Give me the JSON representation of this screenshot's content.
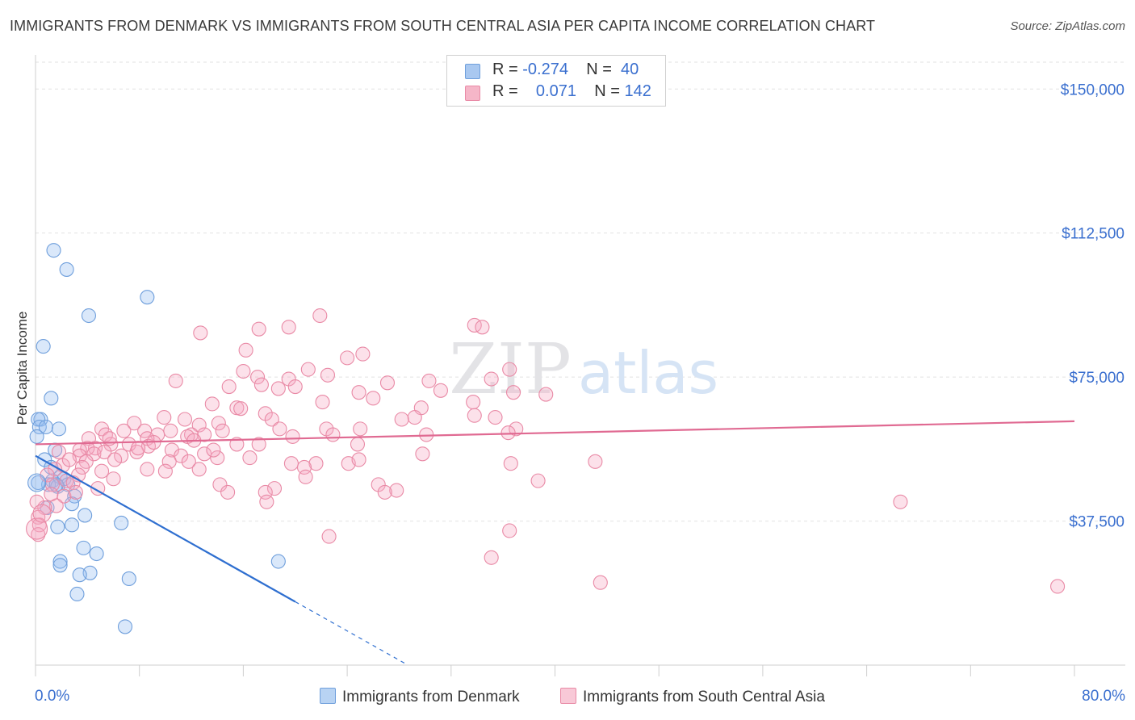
{
  "title": "IMMIGRANTS FROM DENMARK VS IMMIGRANTS FROM SOUTH CENTRAL ASIA PER CAPITA INCOME CORRELATION CHART",
  "source": "Source: ZipAtlas.com",
  "watermark": {
    "zip": "ZIP",
    "atlas": "atlas"
  },
  "legend": {
    "rows": [
      {
        "r_label": "R = ",
        "r_value": "-0.274",
        "n_label": "N = ",
        "n_value": "40",
        "color": "#a9c8f0",
        "border": "#6f9fdc"
      },
      {
        "r_label": "R = ",
        "r_value": "0.071",
        "n_label": "N = ",
        "n_value": "142",
        "color": "#f5b6c8",
        "border": "#e98aa6"
      }
    ]
  },
  "bottom_legend": [
    {
      "label": "Immigrants from Denmark",
      "color": "#b8d3f3",
      "border": "#6f9fdc"
    },
    {
      "label": "Immigrants from South Central Asia",
      "color": "#f8c9d7",
      "border": "#e98aa6"
    }
  ],
  "chart_data": {
    "type": "scatter",
    "title": "IMMIGRANTS FROM DENMARK VS IMMIGRANTS FROM SOUTH CENTRAL ASIA PER CAPITA INCOME CORRELATION CHART",
    "xlabel": "",
    "ylabel": "Per Capita Income",
    "xlim": [
      0,
      80
    ],
    "ylim": [
      0,
      157000
    ],
    "x_tick_labels": {
      "min": "0.0%",
      "max": "80.0%"
    },
    "y_ticks": [
      {
        "value": 37500,
        "label": "$37,500"
      },
      {
        "value": 75000,
        "label": "$75,000"
      },
      {
        "value": 112500,
        "label": "$112,500"
      },
      {
        "value": 150000,
        "label": "$150,000"
      }
    ],
    "grid": true,
    "series": [
      {
        "name": "Immigrants from Denmark",
        "color": "#6f9fdc",
        "fill": "rgba(150,190,240,0.35)",
        "trend": {
          "x0": 0,
          "y0": 54500,
          "x1": 20,
          "y1": 16500,
          "dash_to_x": 28.5,
          "color": "#2f6fd0"
        },
        "points": [
          [
            1.4,
            108000
          ],
          [
            2.4,
            103000
          ],
          [
            8.6,
            95800
          ],
          [
            4.1,
            91000
          ],
          [
            0.6,
            83000
          ],
          [
            1.2,
            69500
          ],
          [
            0.4,
            64000
          ],
          [
            0.2,
            64000
          ],
          [
            0.3,
            62000
          ],
          [
            0.8,
            62000
          ],
          [
            1.8,
            61500
          ],
          [
            1.5,
            56000
          ],
          [
            0.1,
            59500
          ],
          [
            0.7,
            53500
          ],
          [
            1.2,
            51500
          ],
          [
            1.3,
            48000
          ],
          [
            1.9,
            49000
          ],
          [
            2.2,
            48500
          ],
          [
            2.5,
            47000
          ],
          [
            1.0,
            47000
          ],
          [
            1.7,
            46500
          ],
          [
            3.0,
            44000
          ],
          [
            2.8,
            42000
          ],
          [
            0.9,
            41000
          ],
          [
            3.8,
            39000
          ],
          [
            6.6,
            37000
          ],
          [
            2.8,
            36500
          ],
          [
            1.7,
            36000
          ],
          [
            3.7,
            30500
          ],
          [
            4.7,
            29000
          ],
          [
            1.9,
            27000
          ],
          [
            1.9,
            26000
          ],
          [
            4.2,
            24000
          ],
          [
            3.4,
            23500
          ],
          [
            7.2,
            22500
          ],
          [
            3.2,
            18500
          ],
          [
            6.9,
            10000
          ],
          [
            18.7,
            27000
          ],
          [
            0.2,
            47500
          ],
          [
            1.6,
            47000
          ]
        ]
      },
      {
        "name": "Immigrants from South Central Asia",
        "color": "#e98aa6",
        "fill": "rgba(245,170,195,0.35)",
        "trend": {
          "x0": 0,
          "y0": 57500,
          "x1": 80,
          "y1": 63500,
          "color": "#e06a92"
        },
        "points": [
          [
            21.9,
            91000
          ],
          [
            33.8,
            88500
          ],
          [
            34.4,
            88000
          ],
          [
            19.5,
            88000
          ],
          [
            17.2,
            87500
          ],
          [
            12.7,
            86500
          ],
          [
            16.2,
            82000
          ],
          [
            25.2,
            81000
          ],
          [
            24.0,
            80000
          ],
          [
            36.5,
            77000
          ],
          [
            21.0,
            77000
          ],
          [
            16.0,
            76500
          ],
          [
            22.5,
            75500
          ],
          [
            17.1,
            75000
          ],
          [
            35.1,
            74500
          ],
          [
            30.3,
            74000
          ],
          [
            19.5,
            74500
          ],
          [
            10.8,
            74000
          ],
          [
            27.1,
            73500
          ],
          [
            17.4,
            73000
          ],
          [
            14.9,
            72500
          ],
          [
            20.0,
            72500
          ],
          [
            18.7,
            72000
          ],
          [
            31.2,
            71500
          ],
          [
            36.8,
            71000
          ],
          [
            24.9,
            71000
          ],
          [
            39.3,
            70500
          ],
          [
            26.0,
            69500
          ],
          [
            13.6,
            68000
          ],
          [
            22.1,
            68500
          ],
          [
            33.7,
            68500
          ],
          [
            15.5,
            67000
          ],
          [
            29.7,
            67000
          ],
          [
            15.8,
            66800
          ],
          [
            17.7,
            65500
          ],
          [
            18.2,
            64000
          ],
          [
            33.8,
            65000
          ],
          [
            29.2,
            64500
          ],
          [
            35.4,
            64500
          ],
          [
            28.2,
            64000
          ],
          [
            9.9,
            64500
          ],
          [
            11.5,
            64000
          ],
          [
            12.6,
            62500
          ],
          [
            14.1,
            63000
          ],
          [
            7.6,
            63000
          ],
          [
            5.1,
            61500
          ],
          [
            22.4,
            61500
          ],
          [
            8.4,
            61000
          ],
          [
            10.4,
            61000
          ],
          [
            18.8,
            61500
          ],
          [
            37.0,
            61500
          ],
          [
            14.4,
            61000
          ],
          [
            25.0,
            61500
          ],
          [
            6.8,
            61000
          ],
          [
            5.4,
            60000
          ],
          [
            9.4,
            60000
          ],
          [
            12.0,
            60000
          ],
          [
            13.0,
            60000
          ],
          [
            19.8,
            59500
          ],
          [
            22.9,
            60000
          ],
          [
            30.1,
            60000
          ],
          [
            36.4,
            60500
          ],
          [
            4.1,
            59000
          ],
          [
            11.7,
            59500
          ],
          [
            8.6,
            59000
          ],
          [
            7.2,
            57500
          ],
          [
            5.8,
            57500
          ],
          [
            4.6,
            56500
          ],
          [
            4.0,
            56500
          ],
          [
            15.5,
            57500
          ],
          [
            17.2,
            57500
          ],
          [
            24.8,
            57500
          ],
          [
            8.7,
            57000
          ],
          [
            3.4,
            56000
          ],
          [
            10.5,
            56000
          ],
          [
            13.0,
            55000
          ],
          [
            7.8,
            55500
          ],
          [
            4.5,
            55000
          ],
          [
            5.3,
            55500
          ],
          [
            1.8,
            55500
          ],
          [
            3.4,
            54500
          ],
          [
            11.2,
            54500
          ],
          [
            16.5,
            54000
          ],
          [
            14.0,
            54000
          ],
          [
            6.6,
            54500
          ],
          [
            29.8,
            55000
          ],
          [
            3.9,
            53000
          ],
          [
            6.1,
            53500
          ],
          [
            10.3,
            53000
          ],
          [
            11.8,
            53000
          ],
          [
            19.7,
            52500
          ],
          [
            21.6,
            52500
          ],
          [
            24.1,
            52500
          ],
          [
            24.9,
            53500
          ],
          [
            36.6,
            52500
          ],
          [
            43.1,
            53000
          ],
          [
            2.1,
            52000
          ],
          [
            3.6,
            51500
          ],
          [
            8.6,
            51000
          ],
          [
            12.6,
            51000
          ],
          [
            20.7,
            51500
          ],
          [
            1.5,
            51000
          ],
          [
            5.1,
            50500
          ],
          [
            10.0,
            50500
          ],
          [
            3.3,
            49500
          ],
          [
            0.9,
            49500
          ],
          [
            6.0,
            48500
          ],
          [
            14.2,
            47000
          ],
          [
            26.4,
            47000
          ],
          [
            20.8,
            49000
          ],
          [
            38.7,
            48000
          ],
          [
            2.4,
            48000
          ],
          [
            1.3,
            47000
          ],
          [
            2.9,
            47500
          ],
          [
            4.8,
            46000
          ],
          [
            18.4,
            46000
          ],
          [
            14.8,
            45000
          ],
          [
            27.8,
            45500
          ],
          [
            17.7,
            45000
          ],
          [
            26.9,
            45000
          ],
          [
            2.2,
            44000
          ],
          [
            1.6,
            41500
          ],
          [
            0.7,
            41000
          ],
          [
            0.2,
            38500
          ],
          [
            17.8,
            42500
          ],
          [
            0.1,
            42500
          ],
          [
            66.6,
            42500
          ],
          [
            36.5,
            35000
          ],
          [
            22.6,
            33500
          ],
          [
            35.1,
            28000
          ],
          [
            43.5,
            21500
          ],
          [
            78.7,
            20500
          ],
          [
            0.3,
            36500
          ],
          [
            0.2,
            34000
          ],
          [
            1.2,
            44500
          ],
          [
            3.1,
            45000
          ],
          [
            5.7,
            59000
          ],
          [
            9.1,
            58000
          ],
          [
            12.2,
            58500
          ],
          [
            7.9,
            56500
          ],
          [
            2.6,
            53500
          ],
          [
            13.7,
            56000
          ]
        ]
      }
    ]
  }
}
